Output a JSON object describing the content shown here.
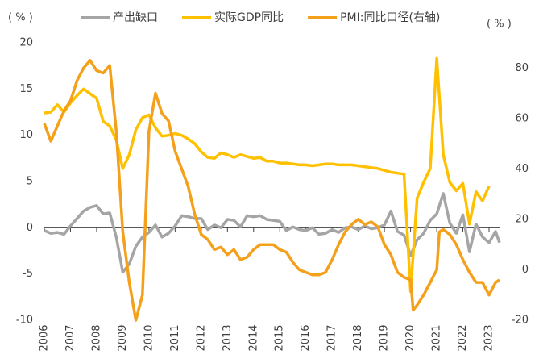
{
  "chart_data": {
    "type": "line",
    "y_unit_label": "( % )",
    "y2_unit_label": "( % )",
    "xlim": [
      2006,
      2023.4
    ],
    "xticks": [
      2006,
      2007,
      2008,
      2009,
      2010,
      2011,
      2012,
      2013,
      2014,
      2015,
      2016,
      2017,
      2018,
      2019,
      2020,
      2021,
      2022,
      2023
    ],
    "ylim": [
      -10,
      20
    ],
    "yticks": [
      -10,
      -5,
      0,
      5,
      10,
      15,
      20
    ],
    "y2lim": [
      -20,
      90
    ],
    "y2ticks": [
      -20,
      0,
      20,
      40,
      60,
      80
    ],
    "grid": false,
    "series": [
      {
        "name": "产出缺口",
        "color": "#a5a5a5",
        "x": [
          2006,
          2006.25,
          2006.5,
          2006.75,
          2007,
          2007.25,
          2007.5,
          2007.75,
          2008,
          2008.25,
          2008.5,
          2008.75,
          2009,
          2009.25,
          2009.5,
          2009.75,
          2010,
          2010.25,
          2010.5,
          2010.75,
          2011,
          2011.25,
          2011.5,
          2011.75,
          2012,
          2012.25,
          2012.5,
          2012.75,
          2013,
          2013.25,
          2013.5,
          2013.75,
          2014,
          2014.25,
          2014.5,
          2014.75,
          2015,
          2015.25,
          2015.5,
          2015.75,
          2016,
          2016.25,
          2016.5,
          2016.75,
          2017,
          2017.25,
          2017.5,
          2017.75,
          2018,
          2018.25,
          2018.5,
          2018.75,
          2019,
          2019.25,
          2019.5,
          2019.75,
          2020,
          2020.25,
          2020.5,
          2020.75,
          2021,
          2021.25,
          2021.5,
          2021.75,
          2022,
          2022.25,
          2022.5,
          2022.75,
          2023,
          2023.25,
          2023.4
        ],
        "values": [
          -0.3,
          -0.6,
          -0.5,
          -0.7,
          0.2,
          1.0,
          1.8,
          2.2,
          2.4,
          1.5,
          1.6,
          -1.0,
          -4.8,
          -3.9,
          -2.0,
          -1.0,
          -0.5,
          0.3,
          -1.0,
          -0.6,
          0.2,
          1.3,
          1.2,
          1.0,
          1.0,
          -0.2,
          0.3,
          0.0,
          0.9,
          0.8,
          0.1,
          1.3,
          1.2,
          1.3,
          0.9,
          0.8,
          0.7,
          -0.3,
          0.1,
          -0.2,
          -0.3,
          0.0,
          -0.7,
          -0.6,
          -0.2,
          -0.5,
          0.0,
          0.1,
          -0.2,
          0.2,
          -0.1,
          0.0,
          0.3,
          1.8,
          -0.4,
          -0.8,
          -3.0,
          -1.3,
          -0.6,
          0.8,
          1.5,
          3.7,
          0.5,
          -0.6,
          1.4,
          -2.6,
          0.4,
          -1.0,
          -1.6,
          -0.4,
          -1.6
        ]
      },
      {
        "name": "实际GDP同比",
        "color": "#ffc000",
        "x": [
          2006,
          2006.25,
          2006.5,
          2006.75,
          2007,
          2007.25,
          2007.5,
          2007.75,
          2008,
          2008.25,
          2008.5,
          2008.75,
          2009,
          2009.25,
          2009.5,
          2009.75,
          2010,
          2010.25,
          2010.5,
          2010.75,
          2011,
          2011.25,
          2011.5,
          2011.75,
          2012,
          2012.25,
          2012.5,
          2012.75,
          2013,
          2013.25,
          2013.5,
          2013.75,
          2014,
          2014.25,
          2014.5,
          2014.75,
          2015,
          2015.25,
          2015.5,
          2015.75,
          2016,
          2016.25,
          2016.5,
          2016.75,
          2017,
          2017.25,
          2017.5,
          2017.75,
          2018,
          2018.25,
          2018.5,
          2018.75,
          2019,
          2019.25,
          2019.5,
          2019.75,
          2020,
          2020.25,
          2020.5,
          2020.75,
          2021,
          2021.25,
          2021.5,
          2021.75,
          2022,
          2022.25,
          2022.5,
          2022.75,
          2023
        ],
        "values": [
          12.4,
          12.5,
          13.3,
          12.5,
          13.5,
          14.3,
          15.0,
          14.5,
          14.0,
          11.5,
          11.0,
          9.5,
          6.4,
          7.9,
          10.6,
          11.9,
          12.2,
          10.8,
          9.9,
          10.0,
          10.2,
          10.0,
          9.6,
          9.1,
          8.2,
          7.6,
          7.5,
          8.1,
          7.9,
          7.6,
          7.9,
          7.7,
          7.5,
          7.6,
          7.2,
          7.2,
          7.0,
          7.0,
          6.9,
          6.8,
          6.8,
          6.7,
          6.8,
          6.9,
          6.9,
          6.8,
          6.8,
          6.8,
          6.7,
          6.6,
          6.5,
          6.4,
          6.2,
          6.0,
          5.9,
          5.8,
          -6.9,
          3.2,
          4.9,
          6.4,
          18.3,
          7.9,
          4.9,
          4.0,
          4.8,
          0.4,
          3.9,
          2.9,
          4.5
        ]
      },
      {
        "name": "PMI:同比口径(右轴)",
        "color": "#f5a01a",
        "axis": "y2",
        "x": [
          2006,
          2006.25,
          2006.5,
          2006.75,
          2007,
          2007.25,
          2007.5,
          2007.75,
          2008,
          2008.25,
          2008.5,
          2008.75,
          2009,
          2009.25,
          2009.5,
          2009.75,
          2010,
          2010.25,
          2010.5,
          2010.75,
          2011,
          2011.25,
          2011.5,
          2011.75,
          2012,
          2012.25,
          2012.5,
          2012.75,
          2013,
          2013.25,
          2013.5,
          2013.75,
          2014,
          2014.25,
          2014.5,
          2014.75,
          2015,
          2015.25,
          2015.5,
          2015.75,
          2016,
          2016.25,
          2016.5,
          2016.75,
          2017,
          2017.25,
          2017.5,
          2017.75,
          2018,
          2018.25,
          2018.5,
          2018.75,
          2019,
          2019.25,
          2019.5,
          2019.75,
          2020,
          2020.1,
          2020.25,
          2020.5,
          2020.75,
          2021,
          2021.1,
          2021.25,
          2021.5,
          2021.75,
          2022,
          2022.25,
          2022.5,
          2022.75,
          2023,
          2023.25,
          2023.4
        ],
        "values": [
          58,
          51,
          57,
          63,
          67,
          75,
          80,
          83,
          79,
          78,
          81,
          55,
          15,
          -5,
          -20,
          -10,
          55,
          70,
          62,
          59,
          47,
          40,
          33,
          22,
          14,
          12,
          8,
          9,
          6,
          8,
          4,
          5,
          8,
          10,
          10,
          10,
          8,
          7,
          3,
          0,
          -1,
          -2,
          -2,
          -1,
          4,
          10,
          15,
          18,
          20,
          18,
          19,
          17,
          10,
          6,
          -1,
          -3,
          -4,
          -16,
          -14,
          -10,
          -5,
          0,
          15,
          16,
          14,
          10,
          4,
          -1,
          -5,
          -5,
          -10,
          -5,
          -4
        ]
      }
    ]
  }
}
